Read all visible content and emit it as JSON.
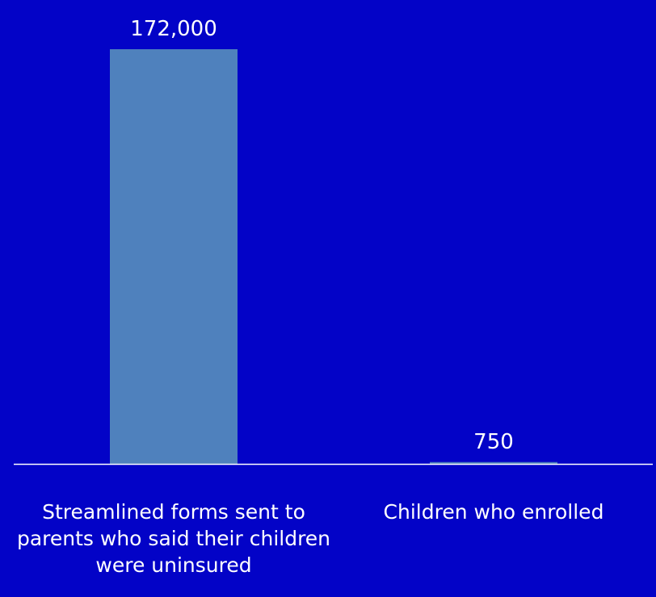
{
  "chart_data": {
    "type": "bar",
    "categories": [
      "Streamlined forms sent to parents who said their children were uninsured",
      "Children who enrolled"
    ],
    "values": [
      172000,
      750
    ],
    "data_labels": [
      "172,000",
      "750"
    ],
    "ylim": [
      0,
      172000
    ],
    "grid": false,
    "legend": "none",
    "colors": {
      "background": "#0303c7",
      "bar": "#4f81bd",
      "axis": "#ffffff",
      "text": "#ffffff"
    }
  }
}
